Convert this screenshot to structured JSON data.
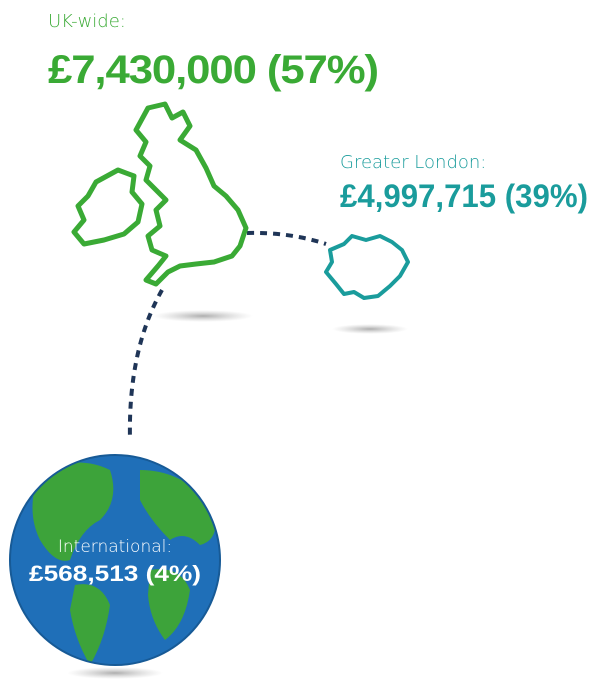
{
  "regions": [
    {
      "label": "UK-wide:",
      "amount": "£7,430,000 (57%)"
    },
    {
      "label": "Greater London:",
      "amount": "£4,997,715 (39%)"
    },
    {
      "label": "International:",
      "amount": "£568,513 (4%)"
    }
  ]
}
